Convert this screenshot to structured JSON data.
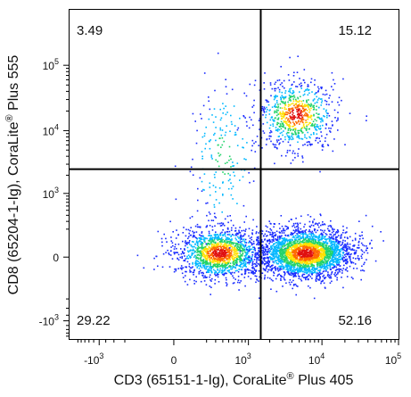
{
  "chart_data": {
    "type": "scatter",
    "subtype": "flow-cytometry-density-dot-plot",
    "xlabel": "CD3 (65151-1-Ig), CoraLite",
    "xlabel_mark": "®",
    "xlabel_tail": " Plus 405",
    "ylabel": "CD8 (65204-1-Ig), CoraLite",
    "ylabel_mark": "®",
    "ylabel_tail": " Plus 555",
    "x_scale": "biexponential",
    "y_scale": "biexponential",
    "x_ticks": [
      {
        "base": "-10",
        "exp": "3",
        "value": -1000
      },
      {
        "base": "0",
        "exp": "",
        "value": 0
      },
      {
        "base": "10",
        "exp": "3",
        "value": 1000
      },
      {
        "base": "10",
        "exp": "4",
        "value": 10000
      },
      {
        "base": "10",
        "exp": "5",
        "value": 100000
      }
    ],
    "y_ticks": [
      {
        "base": "-10",
        "exp": "3",
        "value": -1000
      },
      {
        "base": "0",
        "exp": "",
        "value": 0
      },
      {
        "base": "10",
        "exp": "3",
        "value": 1000
      },
      {
        "base": "10",
        "exp": "4",
        "value": 10000
      },
      {
        "base": "10",
        "exp": "5",
        "value": 100000
      }
    ],
    "gates": {
      "x_threshold": 1500,
      "y_threshold": 2500
    },
    "quadrants": [
      {
        "position": "top-left",
        "percent": "3.49"
      },
      {
        "position": "top-right",
        "percent": "15.12"
      },
      {
        "position": "bottom-left",
        "percent": "29.22"
      },
      {
        "position": "bottom-right",
        "percent": "52.16"
      }
    ],
    "populations": [
      {
        "quadrant": "bottom-left",
        "x_center": 350,
        "y_center": 20,
        "x_spread": 0.28,
        "y_spread": 0.16,
        "weight": 29.22
      },
      {
        "quadrant": "bottom-right",
        "x_center": 6000,
        "y_center": 20,
        "x_spread": 0.3,
        "y_spread": 0.16,
        "weight": 52.16
      },
      {
        "quadrant": "top-right",
        "x_center": 4500,
        "y_center": 18000,
        "x_spread": 0.25,
        "y_spread": 0.22,
        "weight": 15.12
      },
      {
        "quadrant": "top-left",
        "x_center": 400,
        "y_center": 4000,
        "x_spread": 0.2,
        "y_spread": 0.45,
        "weight": 3.49
      }
    ],
    "density_colors": [
      "#1a2cff",
      "#00b8ff",
      "#22d36a",
      "#ffe000",
      "#ff6a00",
      "#e01010"
    ],
    "grid": false,
    "legend": "none"
  }
}
